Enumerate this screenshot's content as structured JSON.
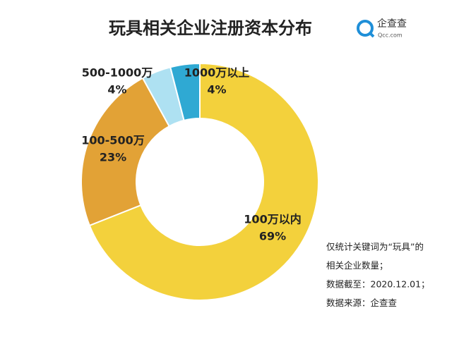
{
  "chart_data": {
    "type": "donut",
    "title": "玩具相关企业注册资本分布",
    "categories": [
      "100万以内",
      "100-500万",
      "500-1000万",
      "1000万以上"
    ],
    "values": [
      69,
      23,
      4,
      4
    ],
    "value_labels": [
      "69%",
      "23%",
      "4%",
      "4%"
    ],
    "colors": [
      "#f3d13c",
      "#e2a236",
      "#aee1f2",
      "#2fa9d3"
    ],
    "logo": {
      "name": "企查查",
      "site": "Qcc.com"
    },
    "notes": [
      "仅统计关键词为“玩具”的",
      "相关企业数量；",
      "数据截至：2020.12.01；",
      "数据来源：企查查"
    ]
  }
}
